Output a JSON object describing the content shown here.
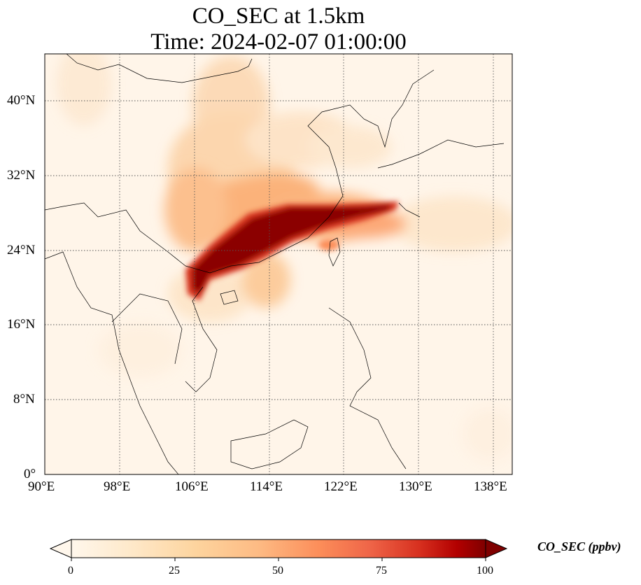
{
  "title": {
    "line1": "CO_SEC at 1.5km",
    "line2": "Time: 2024-02-07 01:00:00"
  },
  "map": {
    "projection": "PlateCarree",
    "lon_range": [
      90,
      140
    ],
    "lat_range": [
      0,
      45
    ],
    "gridlines": "dotted",
    "lon_ticks": [
      "90°E",
      "98°E",
      "106°E",
      "114°E",
      "122°E",
      "130°E",
      "138°E"
    ],
    "lat_ticks": [
      "0°",
      "8°N",
      "16°N",
      "24°N",
      "32°N",
      "40°N"
    ]
  },
  "colorbar": {
    "label": "CO_SEC (ppbv)",
    "ticks": [
      "0",
      "25",
      "50",
      "75",
      "100"
    ],
    "range": [
      0,
      100
    ],
    "colormap": "OrRd",
    "extend": "both"
  },
  "colors": {
    "low": "#fff7ec",
    "mid": "#fdbb84",
    "high": "#7f0000"
  }
}
